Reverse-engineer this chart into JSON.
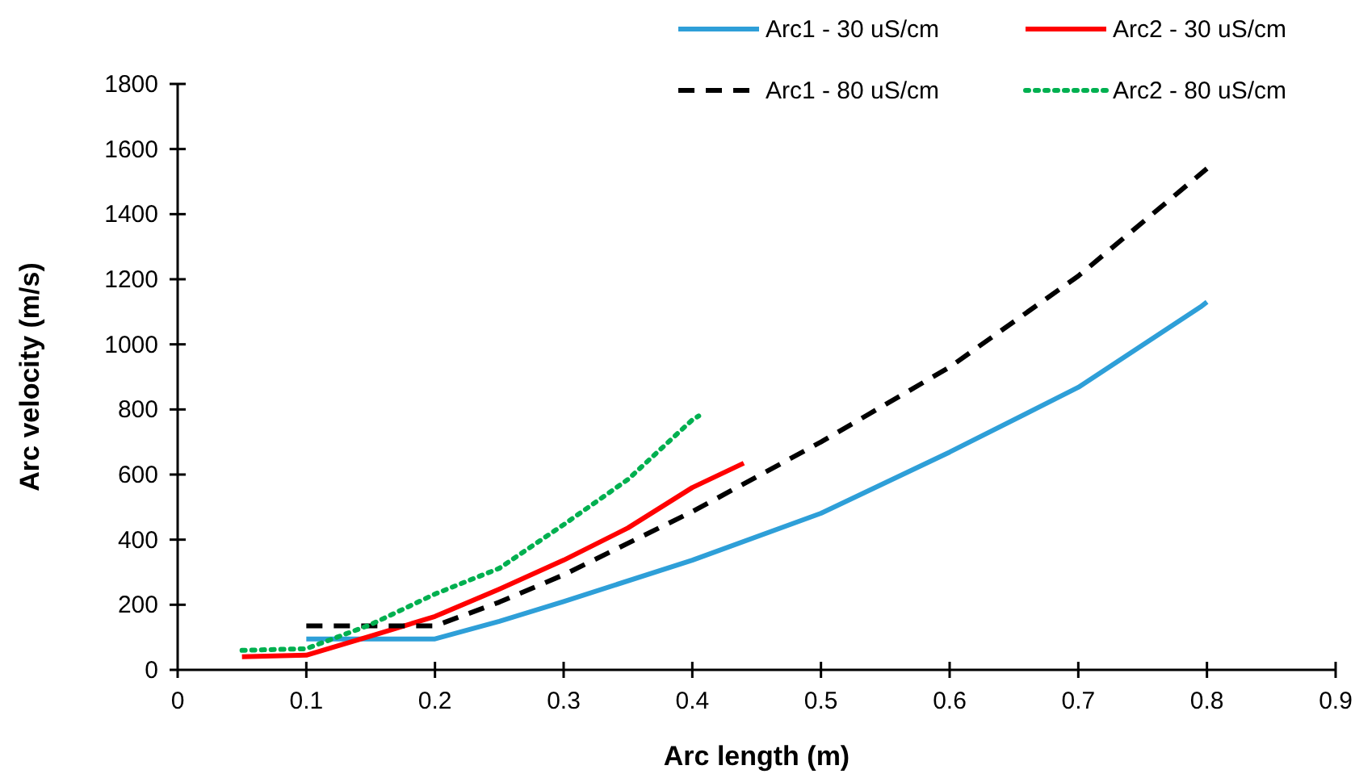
{
  "chart_data": {
    "type": "line",
    "xlabel": "Arc length (m)",
    "ylabel": "Arc velocity (m/s)",
    "xlim": [
      0,
      0.9
    ],
    "ylim": [
      0,
      1800
    ],
    "xticks": [
      0,
      0.1,
      0.2,
      0.3,
      0.4,
      0.5,
      0.6,
      0.7,
      0.8,
      0.9
    ],
    "yticks": [
      0,
      200,
      400,
      600,
      800,
      1000,
      1200,
      1400,
      1600,
      1800
    ],
    "grid": false,
    "legend": "top right",
    "marker": "none",
    "series": [
      {
        "name": "Arc1 - 30 uS/cm",
        "color": "#2e9fd8",
        "line_style": "solid",
        "x": [
          0.1,
          0.2,
          0.25,
          0.3,
          0.4,
          0.5,
          0.6,
          0.7,
          0.795,
          0.8
        ],
        "values": [
          95,
          95,
          149,
          210,
          337,
          481,
          669,
          868,
          1115,
          1130
        ]
      },
      {
        "name": "Arc2 - 30 uS/cm",
        "color": "#ff0000",
        "line_style": "solid",
        "x": [
          0.05,
          0.1,
          0.15,
          0.2,
          0.25,
          0.3,
          0.35,
          0.4,
          0.44
        ],
        "values": [
          40,
          45,
          104,
          164,
          248,
          337,
          436,
          560,
          635
        ]
      },
      {
        "name": "Arc1 - 80 uS/cm",
        "color": "#000000",
        "line_style": "dashed",
        "x": [
          0.1,
          0.2,
          0.25,
          0.3,
          0.4,
          0.5,
          0.6,
          0.7,
          0.8
        ],
        "values": [
          135,
          135,
          208,
          292,
          486,
          700,
          930,
          1210,
          1540
        ]
      },
      {
        "name": "Arc2 - 80 uS/cm",
        "color": "#00b050",
        "line_style": "dotted",
        "x": [
          0.05,
          0.1,
          0.15,
          0.2,
          0.25,
          0.3,
          0.35,
          0.4,
          0.405
        ],
        "values": [
          60,
          65,
          139,
          233,
          312,
          446,
          585,
          768,
          780
        ]
      }
    ]
  }
}
